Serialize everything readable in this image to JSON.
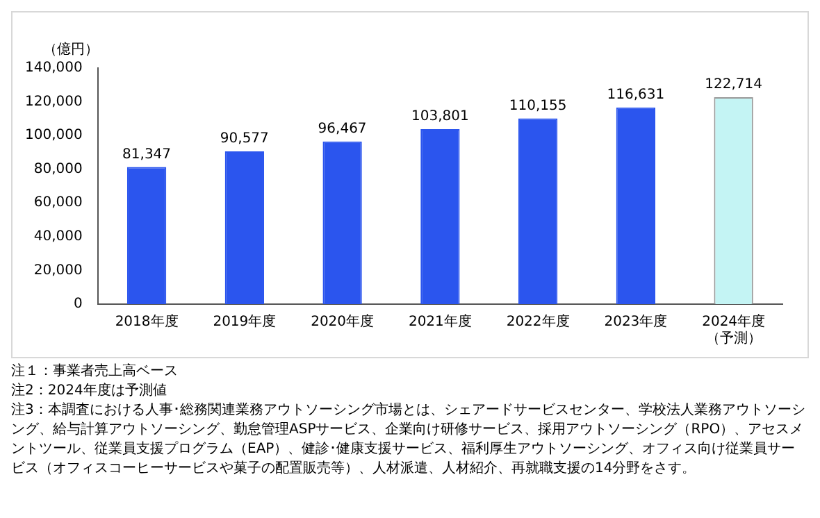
{
  "chart_data": {
    "type": "bar",
    "ylabel": "（億円）",
    "categories": [
      "2018年度",
      "2019年度",
      "2020年度",
      "2021年度",
      "2022年度",
      "2023年度",
      "2024年度（予測）"
    ],
    "values": [
      81347,
      90577,
      96467,
      103801,
      110155,
      116631,
      122714
    ],
    "value_labels": [
      "81,347",
      "90,577",
      "96,467",
      "103,801",
      "110,155",
      "116,631",
      "122,714"
    ],
    "colors": [
      "#2b55ee",
      "#2b55ee",
      "#2b55ee",
      "#2b55ee",
      "#2b55ee",
      "#2b55ee",
      "#c4f4f4"
    ],
    "ylim": [
      0,
      140000
    ],
    "yticks": [
      0,
      {
        "value": 20000,
        "label": "20,000"
      },
      {
        "value": 40000,
        "label": "40,000"
      },
      {
        "value": 60000,
        "label": "60,000"
      },
      {
        "value": 80000,
        "label": "80,000"
      },
      {
        "value": 100000,
        "label": "100,000"
      },
      {
        "value": 120000,
        "label": "120,000"
      },
      {
        "value": 140000,
        "label": "140,000"
      }
    ],
    "grid": false,
    "legend": false,
    "annotations": [
      "注１：事業者売上高ベース",
      "注2：2024年度は予測値",
      "注3：本調査における人事･総務関連業務アウトソーシング市場とは、シェアードサービスセンター、学校法人業務アウトソーシング、給与計算アウトソーシング、勤怠管理ASPサービス、企業向け研修サービス、採用アウトソーシング（RPO）、アセスメントツール、従業員支援プログラム（EAP）、健診･健康支援サービス、福利厚生アウトソーシング、オフィス向け従業員サービス（オフィスコーヒーサービスや菓子の配置販売等）、人材派遣、人材紹介、再就職支援の14分野をさす。"
    ]
  }
}
